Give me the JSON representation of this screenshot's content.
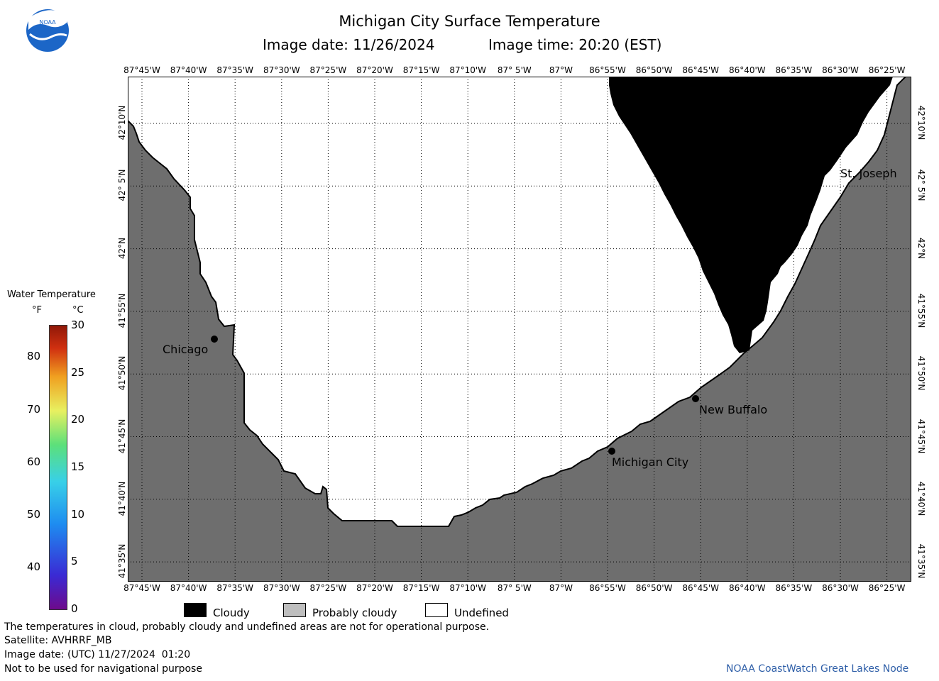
{
  "header": {
    "title": "Michigan City Surface Temperature",
    "image_date": "Image date: 11/26/2024",
    "image_time": "Image time: 20:20 (EST)",
    "logo_text": "NOAA"
  },
  "map": {
    "lon_labels": [
      "87°45'W",
      "87°40'W",
      "87°35'W",
      "87°30'W",
      "87°25'W",
      "87°20'W",
      "87°15'W",
      "87°10'W",
      "87° 5'W",
      "87°W",
      "86°55'W",
      "86°50'W",
      "86°45'W",
      "86°40'W",
      "86°35'W",
      "86°30'W",
      "86°25'W"
    ],
    "lat_labels": [
      "42°10'N",
      "42° 5'N",
      "42°N",
      "41°55'N",
      "41°50'N",
      "41°45'N",
      "41°40'N",
      "41°35'N"
    ],
    "cities": {
      "chicago": "Chicago",
      "michigan_city": "Michigan City",
      "new_buffalo": "New Buffalo",
      "st_joseph": "St. Joseph"
    },
    "colors": {
      "land": "#6e6e6e",
      "cloud": "#000000",
      "undefined": "#ffffff",
      "probably_cloudy": "#bebebe"
    }
  },
  "scale": {
    "title": "Water Temperature",
    "unit_f": "°F",
    "unit_c": "°C",
    "f_ticks": [
      "80",
      "70",
      "60",
      "50",
      "40"
    ],
    "c_ticks": [
      "30",
      "25",
      "20",
      "15",
      "10",
      "5",
      "0"
    ]
  },
  "legend": {
    "cloudy": "Cloudy",
    "probably_cloudy": "Probably cloudy",
    "undefined": "Undefined"
  },
  "footer": {
    "disclaimer": "The temperatures in cloud, probably cloudy and undefined areas are not for operational purpose.",
    "satellite": "Satellite: AVHRRF_MB",
    "utc_date": "Image date: (UTC) 11/27/2024  01:20",
    "nav_warning": "Not to be used for navigational purpose",
    "credit": "NOAA CoastWatch Great Lakes Node"
  }
}
